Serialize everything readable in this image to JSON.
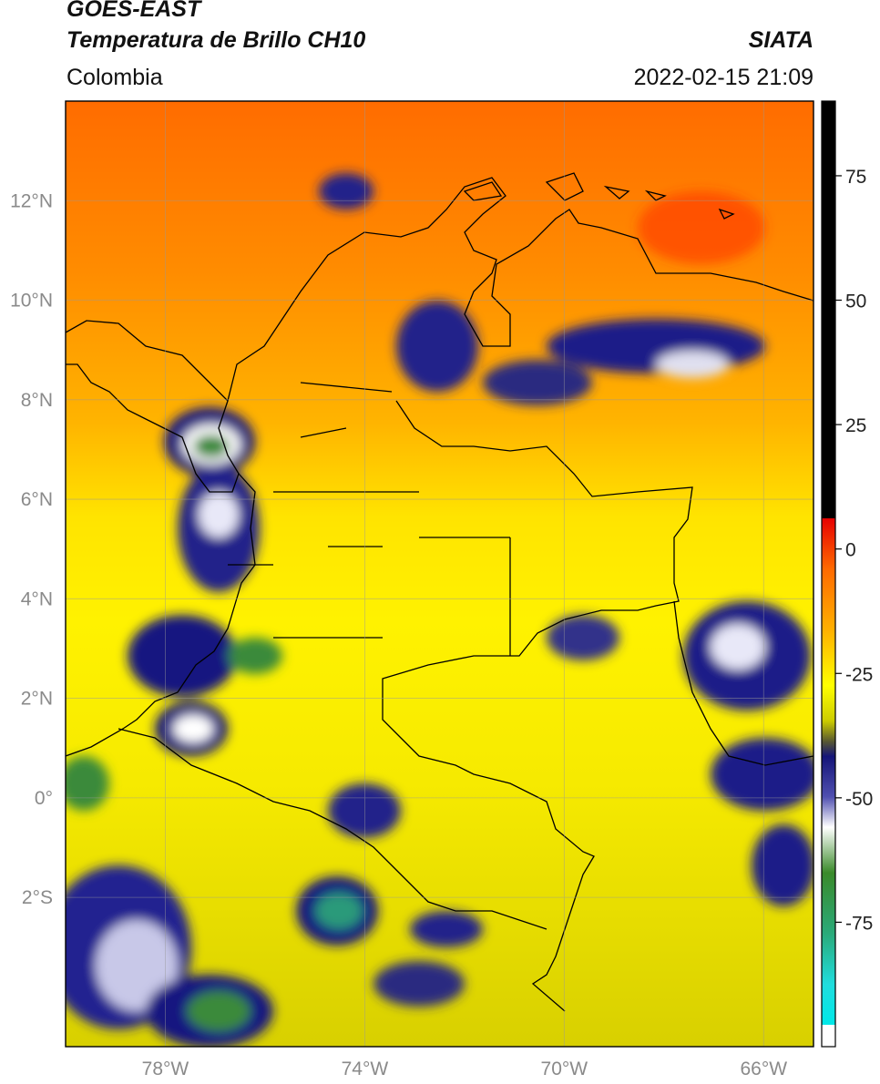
{
  "header": {
    "satellite": "GOES-EAST",
    "product": "Temperatura de Brillo CH10",
    "region": "Colombia",
    "org": "SIATA",
    "datetime": "2022-02-15 21:09"
  },
  "map": {
    "extent": {
      "lon_min": -80.0,
      "lon_max": -65.0,
      "lat_min": -5.0,
      "lat_max": 14.0
    },
    "lat_ticks": [
      {
        "value": 12,
        "label": "12°N"
      },
      {
        "value": 10,
        "label": "10°N"
      },
      {
        "value": 8,
        "label": "8°N"
      },
      {
        "value": 6,
        "label": "6°N"
      },
      {
        "value": 4,
        "label": "4°N"
      },
      {
        "value": 2,
        "label": "2°N"
      },
      {
        "value": 0,
        "label": "0°"
      },
      {
        "value": -2,
        "label": "2°S"
      }
    ],
    "lon_ticks": [
      {
        "value": -78,
        "label": "78°W"
      },
      {
        "value": -74,
        "label": "74°W"
      },
      {
        "value": -70,
        "label": "70°W"
      },
      {
        "value": -66,
        "label": "66°W"
      }
    ],
    "grid": true,
    "colors": {
      "warm": "#ff6a00",
      "mid": "#ffd200",
      "cool": "#ffff00",
      "cold_dark": "#141478",
      "cold_green": "#3a8a3a"
    }
  },
  "colorbar": {
    "range": [
      -100,
      90
    ],
    "ticks": [
      {
        "value": 75,
        "label": "75"
      },
      {
        "value": 50,
        "label": "50"
      },
      {
        "value": 25,
        "label": "25"
      },
      {
        "value": 0,
        "label": "0"
      },
      {
        "value": -25,
        "label": "-25"
      },
      {
        "value": -50,
        "label": "-50"
      },
      {
        "value": -75,
        "label": "-75"
      }
    ]
  }
}
